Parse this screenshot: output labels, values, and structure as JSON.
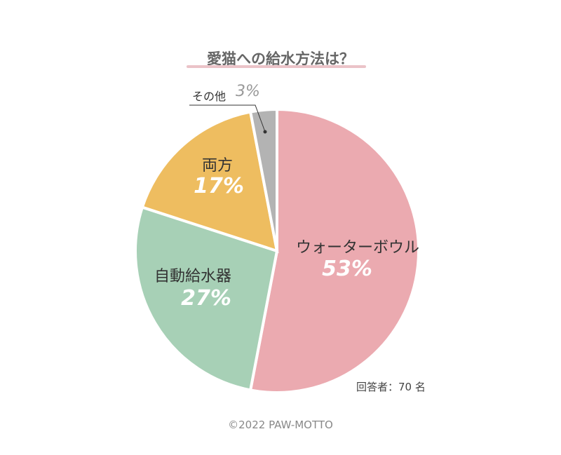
{
  "chart_data": {
    "type": "pie",
    "title": "愛猫への給水方法は？",
    "categories": [
      "ウォーターボウル",
      "自動給水器",
      "両方",
      "その他"
    ],
    "values": [
      53,
      27,
      17,
      3
    ],
    "labels": [
      "53%",
      "27%",
      "17%",
      "3%"
    ],
    "colors": [
      "#ebaab0",
      "#a7d0b6",
      "#eebd60",
      "#b3b3b3"
    ],
    "note": "回答者：70 名"
  },
  "footer": "©2022 PAW-MOTTO"
}
